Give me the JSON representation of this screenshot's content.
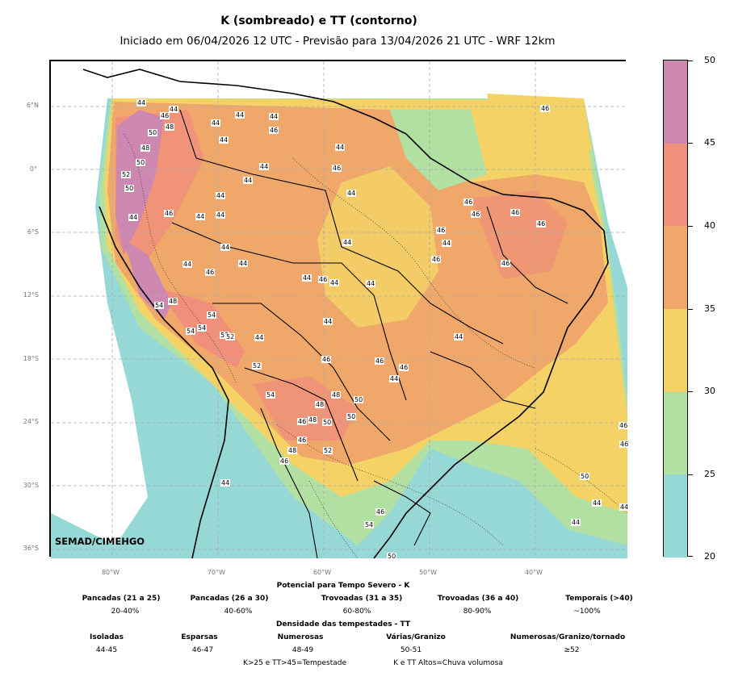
{
  "title": "K (sombreado) e TT (contorno)",
  "subtitle": "Iniciado em 06/04/2026 12 UTC - Previsão para 13/04/2026 21 UTC - WRF 12km",
  "watermark": "SEMAD/CIMEHGO",
  "lat_labels": [
    "6°N",
    "0°",
    "6°S",
    "12°S",
    "18°S",
    "24°S",
    "30°S",
    "36°S"
  ],
  "lon_labels": [
    "80°W",
    "70°W",
    "60°W",
    "50°W",
    "40°W"
  ],
  "colorbar": {
    "labels": [
      "50",
      "45",
      "40",
      "35",
      "30",
      "25",
      "20"
    ],
    "bands": [
      {
        "from": 45,
        "to": 50,
        "color": "#cc88b0"
      },
      {
        "from": 40,
        "to": 45,
        "color": "#f0907a"
      },
      {
        "from": 35,
        "to": 40,
        "color": "#efa86a"
      },
      {
        "from": 30,
        "to": 35,
        "color": "#f5d266"
      },
      {
        "from": 25,
        "to": 30,
        "color": "#b2e0a2"
      },
      {
        "from": 20,
        "to": 25,
        "color": "#95d8d6"
      }
    ]
  },
  "contour_labels": [
    "44",
    "46",
    "44",
    "44",
    "50",
    "48",
    "44",
    "46",
    "44",
    "44",
    "48",
    "46",
    "50",
    "44",
    "44",
    "46",
    "52",
    "50",
    "44",
    "44",
    "44",
    "46",
    "44",
    "46",
    "46",
    "44",
    "44",
    "44",
    "44",
    "46",
    "46",
    "46",
    "44",
    "46",
    "44",
    "44",
    "46",
    "44",
    "44",
    "44",
    "46",
    "46",
    "54",
    "48",
    "54",
    "54",
    "54",
    "52",
    "52",
    "44",
    "44",
    "46",
    "46",
    "44",
    "44",
    "46",
    "52",
    "54",
    "48",
    "50",
    "48",
    "46",
    "48",
    "50",
    "50",
    "46",
    "52",
    "48",
    "46",
    "44",
    "46",
    "46",
    "54",
    "50",
    "50",
    "44",
    "44",
    "44",
    "46"
  ],
  "legend": {
    "header_k": "Potencial para Tempo Severo - K",
    "k_categories": [
      {
        "name": "Pancadas (21 a 25)",
        "prob": "20-40%"
      },
      {
        "name": "Pancadas (26 a 30)",
        "prob": "40-60%"
      },
      {
        "name": "Trovoadas (31 a 35)",
        "prob": "60-80%"
      },
      {
        "name": "Trovoadas (36 a 40)",
        "prob": "80-90%"
      },
      {
        "name": "Temporais (>40)",
        "prob": "~100%"
      }
    ],
    "header_tt": "Densidade das tempestades - TT",
    "tt_categories": [
      {
        "name": "Isoladas",
        "range": "44-45"
      },
      {
        "name": "Esparsas",
        "range": "46-47"
      },
      {
        "name": "Numerosas",
        "range": "48-49"
      },
      {
        "name": "Várias/Granizo",
        "range": "50-51"
      },
      {
        "name": "Numerosas/Granizo/tornado",
        "range": "≥52"
      }
    ],
    "footnote_left": "K>25 e TT>45=Tempestade",
    "footnote_right": "K e TT Altos=Chuva volumosa"
  }
}
